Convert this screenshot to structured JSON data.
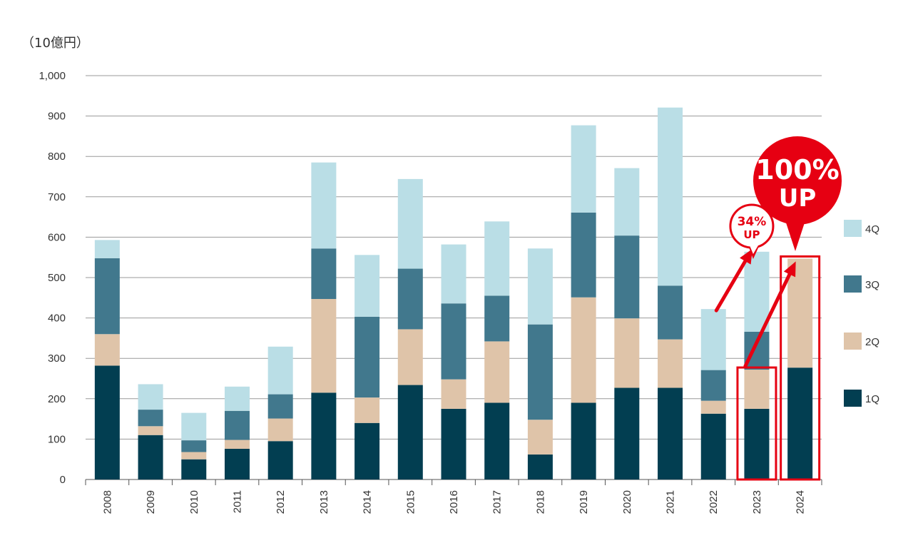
{
  "chart_data": {
    "type": "bar",
    "stacked": true,
    "unit_label": "（10億円）",
    "categories": [
      "2008",
      "2009",
      "2010",
      "2011",
      "2012",
      "2013",
      "2014",
      "2015",
      "2016",
      "2017",
      "2018",
      "2019",
      "2020",
      "2021",
      "2022",
      "2023",
      "2024"
    ],
    "series": [
      {
        "name": "1Q",
        "color": "#023e51",
        "values": [
          282,
          110,
          50,
          76,
          95,
          215,
          140,
          234,
          175,
          190,
          62,
          190,
          227,
          227,
          163,
          175,
          277
        ]
      },
      {
        "name": "2Q",
        "color": "#dfc4a9",
        "values": [
          78,
          22,
          18,
          22,
          56,
          232,
          63,
          138,
          73,
          152,
          86,
          261,
          172,
          120,
          32,
          97,
          270
        ]
      },
      {
        "name": "3Q",
        "color": "#41788d",
        "values": [
          188,
          41,
          29,
          72,
          60,
          125,
          200,
          150,
          188,
          113,
          236,
          210,
          205,
          133,
          76,
          94,
          0
        ]
      },
      {
        "name": "4Q",
        "color": "#badee6",
        "values": [
          45,
          63,
          68,
          60,
          118,
          213,
          153,
          222,
          146,
          184,
          188,
          216,
          167,
          441,
          151,
          198,
          0
        ]
      }
    ],
    "ylim": [
      0,
      1000
    ],
    "yticks": [
      0,
      100,
      200,
      300,
      400,
      500,
      600,
      700,
      800,
      900,
      1000
    ],
    "ytick_labels": [
      "0",
      "100",
      "200",
      "300",
      "400",
      "500",
      "600",
      "700",
      "800",
      "900",
      "1,000"
    ],
    "legend": {
      "position": "right",
      "order": [
        "4Q",
        "3Q",
        "2Q",
        "1Q"
      ]
    },
    "grid": true,
    "annotations": [
      {
        "id": "callout-2023",
        "line1": "34%",
        "line2": "UP",
        "color": "#e60012",
        "from": "2022",
        "to": "2023"
      },
      {
        "id": "callout-2024",
        "line1": "100%",
        "line2": "UP",
        "color": "#e60012",
        "from": "2023",
        "to": "2024"
      }
    ],
    "highlighted_categories": [
      "2023",
      "2024"
    ]
  }
}
